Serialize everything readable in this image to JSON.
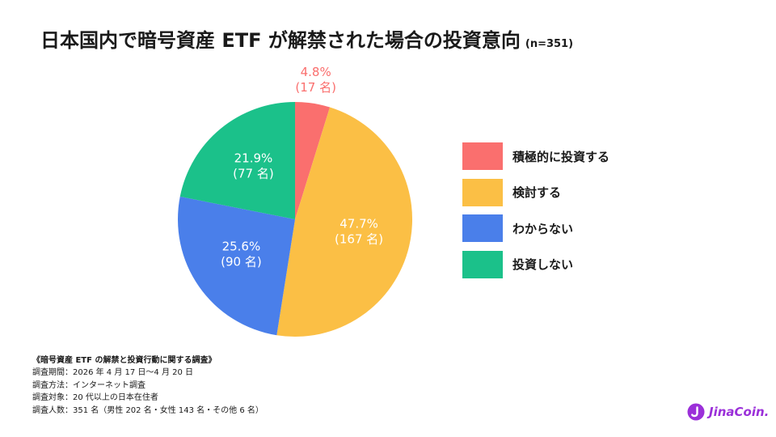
{
  "title": "日本国内で暗号資産 ETF が解禁された場合の投資意向",
  "sample_size": "(n=351)",
  "chart_data": {
    "type": "pie",
    "title": "日本国内で暗号資産 ETF が解禁された場合の投資意向",
    "slices": [
      {
        "label": "積極的に投資する",
        "percent": 4.8,
        "count": 17,
        "percent_text": "4.8%",
        "count_text": "(17 名)",
        "color": "#fa6f6e"
      },
      {
        "label": "検討する",
        "percent": 47.7,
        "count": 167,
        "percent_text": "47.7%",
        "count_text": "(167 名)",
        "color": "#fbbf45"
      },
      {
        "label": "わからない",
        "percent": 25.6,
        "count": 90,
        "percent_text": "25.6%",
        "count_text": "(90 名)",
        "color": "#4a7fea"
      },
      {
        "label": "投資しない",
        "percent": 21.9,
        "count": 77,
        "percent_text": "21.9%",
        "count_text": "(77 名)",
        "color": "#1bc18a"
      }
    ],
    "legend": "right"
  },
  "notes": {
    "heading": "《暗号資産 ETF の解禁と投資行動に関する調査》",
    "lines": [
      "調査期間：2026 年 4 月 17 日〜4 月 20 日",
      "調査方法：インターネット調査",
      "調査対象：20 代以上の日本在住者",
      "調査人数：351 名（男性 202 名・女性 143 名・その他 6 名）"
    ]
  },
  "logo": {
    "text": "JinaCoin.",
    "color": "#9b30d9"
  }
}
